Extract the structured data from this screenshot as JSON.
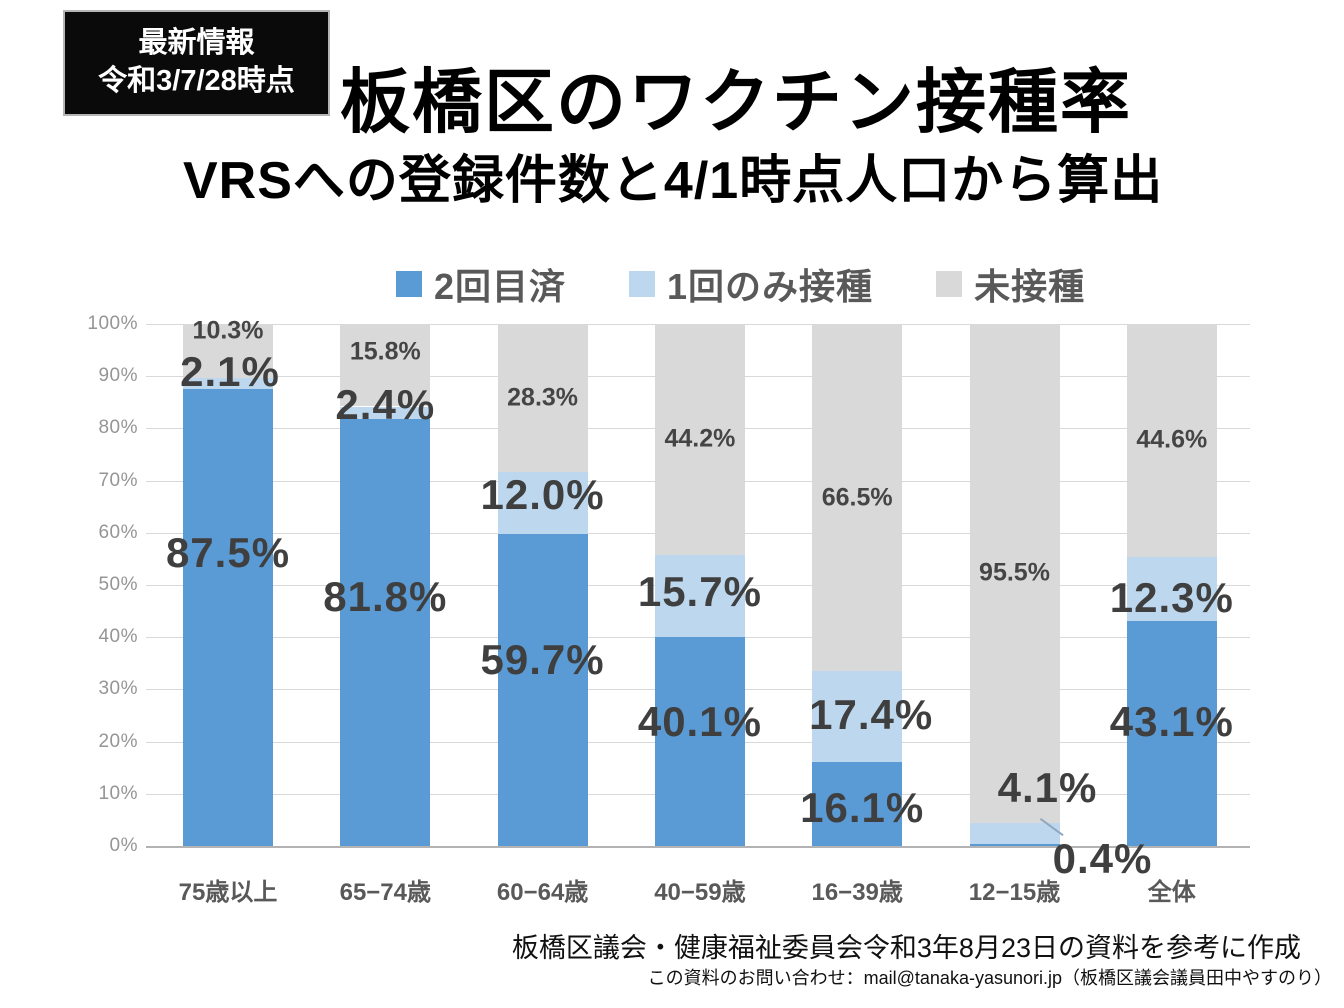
{
  "badge": {
    "line1": "最新情報",
    "line2": "令和3/7/28時点",
    "bg_color": "#0a0a0a",
    "text_color": "#ffffff"
  },
  "title": "板橋区のワクチン接種率",
  "subtitle": "VRSへの登録件数と4/1時点人口から算出",
  "legend": [
    {
      "label": "2回目済",
      "color": "#5b9bd5"
    },
    {
      "label": "1回のみ接種",
      "color": "#bdd7ee"
    },
    {
      "label": "未接種",
      "color": "#d9d9d9"
    }
  ],
  "chart_data": {
    "type": "bar",
    "stacked": true,
    "percent_stack": true,
    "title": "板橋区のワクチン接種率",
    "categories": [
      "75歳以上",
      "65−74歳",
      "60−64歳",
      "40−59歳",
      "16−39歳",
      "12−15歳",
      "全体"
    ],
    "series": [
      {
        "name": "2回目済",
        "color": "#5b9bd5",
        "values": [
          87.5,
          81.8,
          59.7,
          40.1,
          16.1,
          0.4,
          43.1
        ]
      },
      {
        "name": "1回のみ接種",
        "color": "#bdd7ee",
        "values": [
          2.1,
          2.4,
          12.0,
          15.7,
          17.4,
          4.1,
          12.3
        ]
      },
      {
        "name": "未接種",
        "color": "#d9d9d9",
        "values": [
          10.3,
          15.8,
          28.3,
          44.2,
          66.5,
          95.5,
          44.6
        ]
      }
    ],
    "value_suffix": "%",
    "ylim": [
      0,
      100
    ],
    "yticks": [
      "0%",
      "10%",
      "20%",
      "30%",
      "40%",
      "50%",
      "60%",
      "70%",
      "80%",
      "90%",
      "100%"
    ],
    "grid": true,
    "legend_position": "top",
    "gridline_color": "#d9d9d9",
    "axis_line_color": "#b3b3b3",
    "tick_label_color": "#959595",
    "category_label_color": "#595959",
    "value_label_color": "#3f3f3f"
  },
  "footer": {
    "source": "板橋区議会・健康福祉委員会令和3年8月23日の資料を参考に作成",
    "contact": "この資料のお問い合わせ：mail@tanaka-yasunori.jp（板橋区議会議員田中やすのり）"
  }
}
